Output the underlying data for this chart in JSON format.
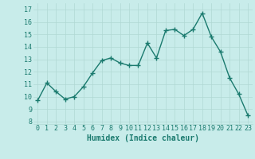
{
  "x": [
    0,
    1,
    2,
    3,
    4,
    5,
    6,
    7,
    8,
    9,
    10,
    11,
    12,
    13,
    14,
    15,
    16,
    17,
    18,
    19,
    20,
    21,
    22,
    23
  ],
  "y": [
    9.7,
    11.1,
    10.4,
    9.8,
    10.0,
    10.8,
    11.9,
    12.9,
    13.1,
    12.7,
    12.5,
    12.5,
    14.3,
    13.1,
    15.3,
    15.4,
    14.9,
    15.4,
    16.7,
    14.8,
    13.6,
    11.5,
    10.2,
    8.5
  ],
  "line_color": "#1a7a6e",
  "marker": "+",
  "marker_size": 4,
  "marker_linewidth": 1.0,
  "line_width": 1.0,
  "xlabel": "Humidex (Indice chaleur)",
  "xlabel_fontsize": 7,
  "ylabel_ticks": [
    8,
    9,
    10,
    11,
    12,
    13,
    14,
    15,
    16,
    17
  ],
  "xtick_labels": [
    "0",
    "1",
    "2",
    "3",
    "4",
    "5",
    "6",
    "7",
    "8",
    "9",
    "10",
    "11",
    "12",
    "13",
    "14",
    "15",
    "16",
    "17",
    "18",
    "19",
    "20",
    "21",
    "22",
    "23"
  ],
  "ylim": [
    7.8,
    17.5
  ],
  "xlim": [
    -0.5,
    23.5
  ],
  "bg_color": "#c8ecea",
  "grid_color": "#b0d8d4",
  "tick_color": "#1a7a6e",
  "label_color": "#1a7a6e",
  "tick_fontsize": 6
}
